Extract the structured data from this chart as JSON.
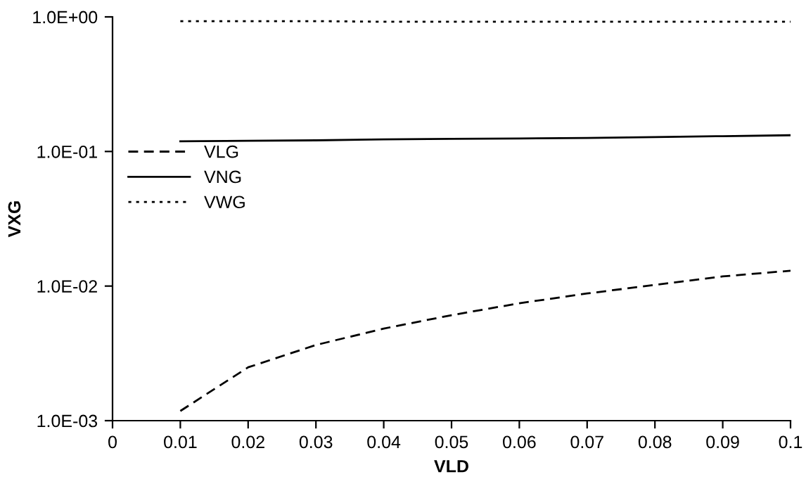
{
  "chart_data": {
    "type": "line",
    "xlabel": "VLD",
    "ylabel": "VXG",
    "x": [
      0.01,
      0.02,
      0.03,
      0.04,
      0.05,
      0.06,
      0.07,
      0.08,
      0.09,
      0.1
    ],
    "series": [
      {
        "name": "VLG",
        "color": "#000000",
        "line_style": "dashed",
        "values": [
          0.00118,
          0.00249,
          0.00365,
          0.00483,
          0.00608,
          0.00745,
          0.00881,
          0.0102,
          0.0118,
          0.013
        ]
      },
      {
        "name": "VNG",
        "color": "#000000",
        "line_style": "solid",
        "values": [
          0.119,
          0.12,
          0.121,
          0.123,
          0.124,
          0.125,
          0.126,
          0.128,
          0.13,
          0.132
        ]
      },
      {
        "name": "VWG",
        "color": "#000000",
        "line_style": "dotted",
        "values": [
          0.93,
          0.93,
          0.93,
          0.92,
          0.92,
          0.92,
          0.92,
          0.92,
          0.92,
          0.92
        ]
      }
    ],
    "log": "y",
    "grid": false,
    "legend": "left",
    "marker": "none",
    "xlim": [
      0,
      0.1
    ],
    "xticks": [
      0,
      0.01,
      0.02,
      0.03,
      0.04,
      0.05,
      0.06,
      0.07,
      0.08,
      0.09,
      0.1
    ],
    "ylim": [
      0.001,
      1
    ],
    "yticks": [
      {
        "value": 0.001,
        "label": "1.0E-03"
      },
      {
        "value": 0.01,
        "label": "1.0E-02"
      },
      {
        "value": 0.1,
        "label": "1.0E-01"
      },
      {
        "value": 1,
        "label": "1.0E+00"
      }
    ]
  }
}
